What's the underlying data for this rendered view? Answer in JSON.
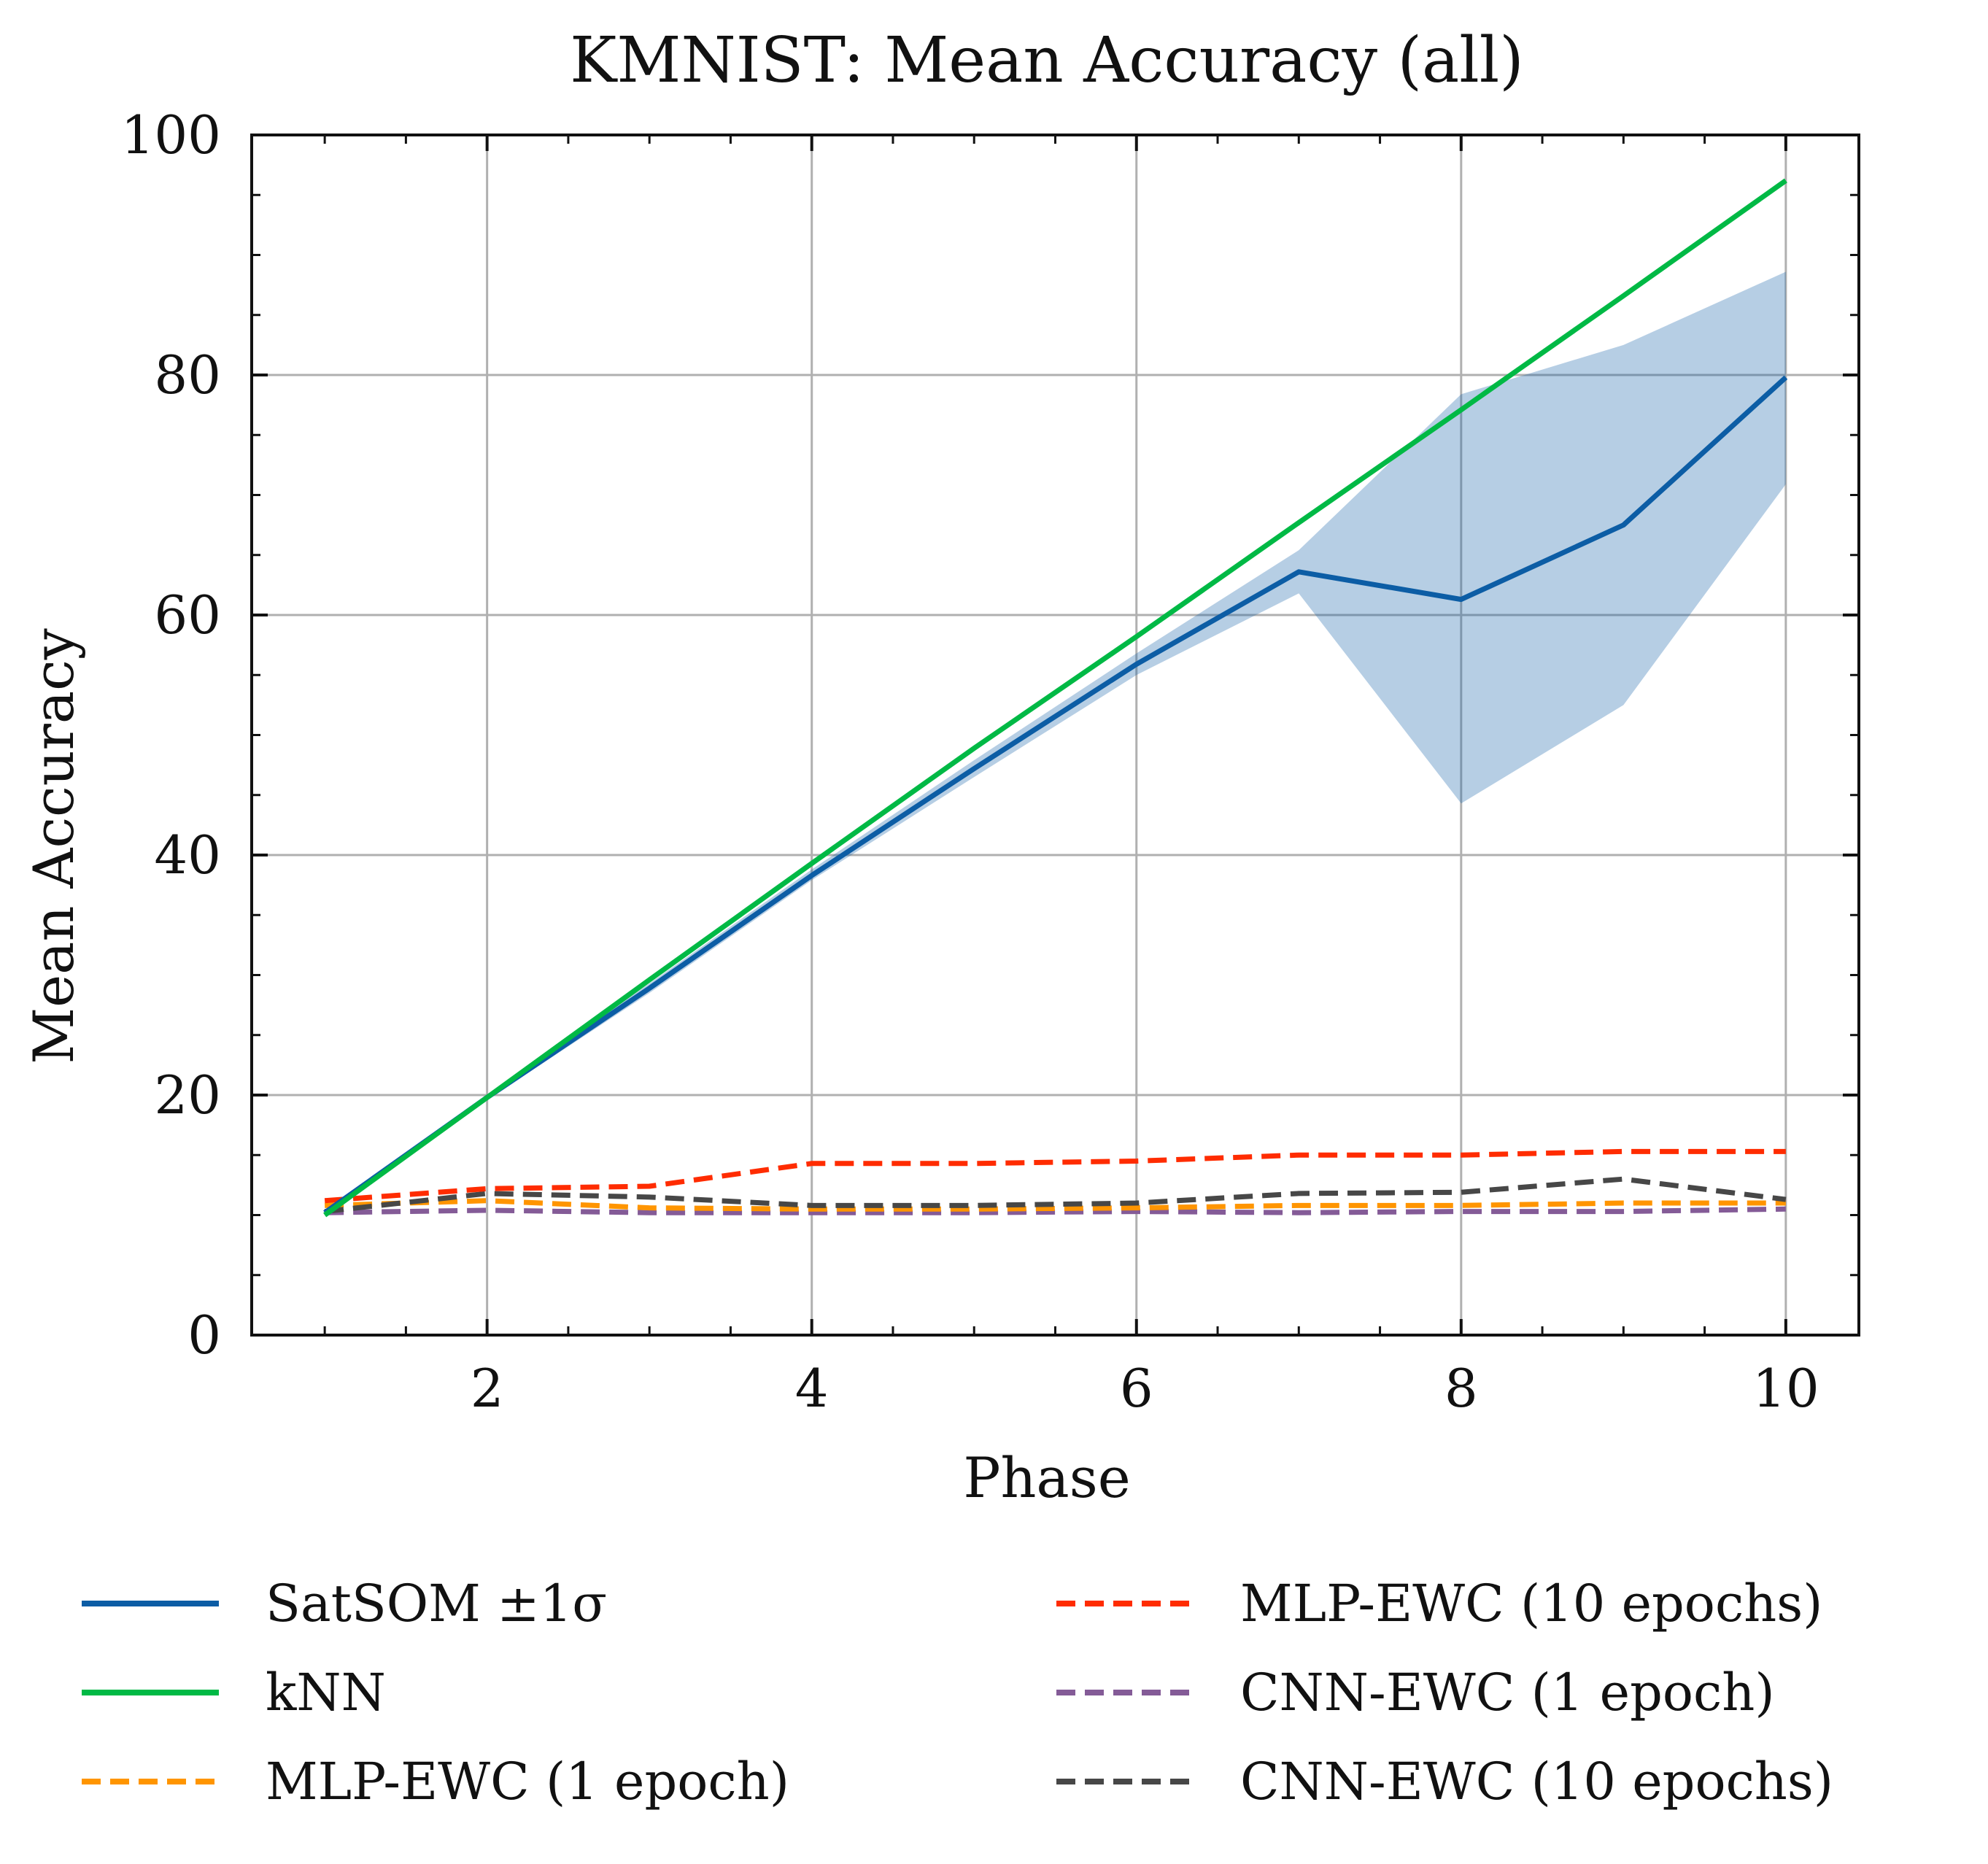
{
  "chart_data": {
    "type": "line",
    "title": "KMNIST: Mean Accuracy (all)",
    "xlabel": "Phase",
    "ylabel": "Mean Accuracy",
    "xlim": [
      0.55,
      10.45
    ],
    "ylim": [
      0,
      100
    ],
    "xticks": [
      2,
      4,
      6,
      8,
      10
    ],
    "yticks": [
      0,
      20,
      40,
      60,
      80,
      100
    ],
    "grid": true,
    "legend_position": "bottom, two columns",
    "x": [
      1,
      2,
      3,
      4,
      5,
      6,
      7,
      8,
      9,
      10
    ],
    "series": [
      {
        "name": "SatSOM ±1σ",
        "color": "#0c5da5",
        "style": "solid",
        "values": [
          10.2,
          19.8,
          28.9,
          38.3,
          47.2,
          55.9,
          63.6,
          61.3,
          67.5,
          79.8
        ],
        "band_low": [
          10.0,
          19.6,
          28.5,
          37.9,
          46.5,
          55.0,
          61.8,
          44.3,
          52.5,
          70.9
        ],
        "band_high": [
          10.4,
          20.0,
          29.3,
          38.8,
          47.9,
          56.8,
          65.4,
          78.4,
          82.5,
          88.6
        ]
      },
      {
        "name": "kNN",
        "color": "#00b945",
        "style": "solid",
        "values": [
          10.0,
          19.8,
          29.6,
          39.3,
          48.9,
          58.2,
          67.7,
          77.1,
          86.6,
          96.2
        ]
      },
      {
        "name": "MLP-EWC (1 epoch)",
        "color": "#ff9500",
        "style": "dashed",
        "values": [
          10.8,
          11.2,
          10.6,
          10.5,
          10.5,
          10.6,
          10.8,
          10.8,
          11.0,
          11.0
        ]
      },
      {
        "name": "MLP-EWC (10 epochs)",
        "color": "#ff2c00",
        "style": "dashed",
        "values": [
          11.2,
          12.2,
          12.4,
          14.3,
          14.3,
          14.5,
          15.0,
          15.0,
          15.3,
          15.3
        ]
      },
      {
        "name": "CNN-EWC (1 epoch)",
        "color": "#845b97",
        "style": "dashed",
        "values": [
          10.2,
          10.4,
          10.2,
          10.2,
          10.2,
          10.3,
          10.2,
          10.3,
          10.3,
          10.5
        ]
      },
      {
        "name": "CNN-EWC (10 epochs)",
        "color": "#474747",
        "style": "dashed",
        "values": [
          10.3,
          11.8,
          11.5,
          10.8,
          10.8,
          11.0,
          11.8,
          11.9,
          13.0,
          11.3
        ]
      }
    ]
  }
}
